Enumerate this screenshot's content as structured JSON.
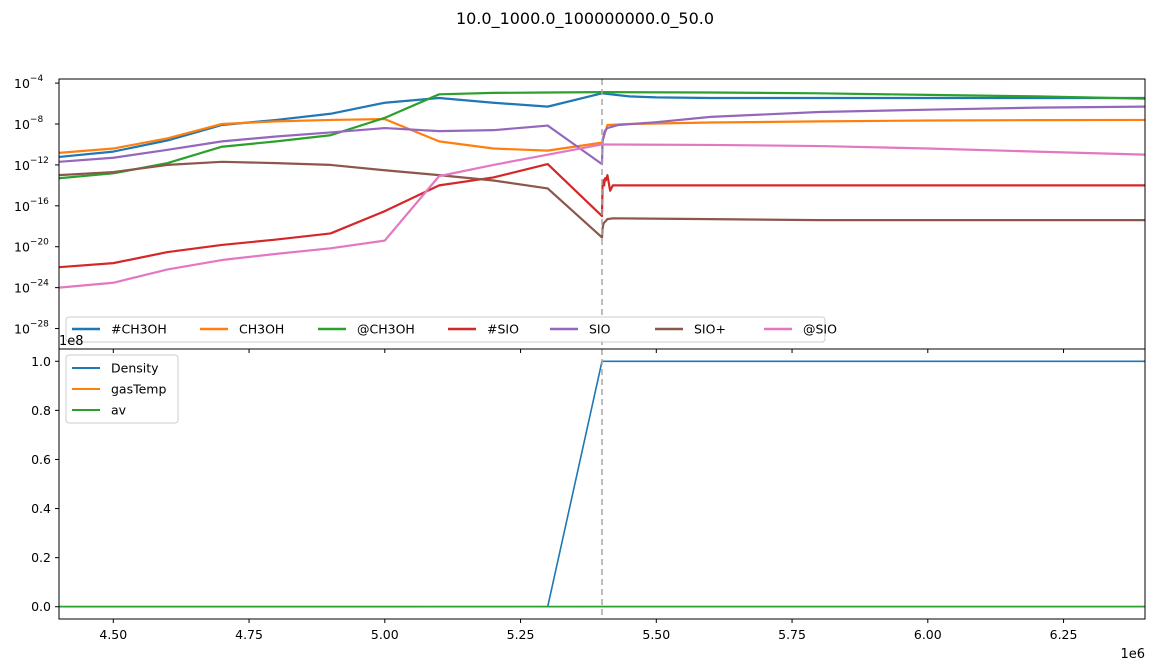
{
  "figure_title": "10.0_1000.0_100000000.0_50.0",
  "chart_data": [
    {
      "type": "line",
      "yscale": "log",
      "xlim": [
        4400000,
        6400000
      ],
      "ylim_log10": [
        -30,
        -3.6
      ],
      "yticks": [
        {
          "value": 0.0001,
          "exp": "-4"
        },
        {
          "value": 1e-08,
          "exp": "-8"
        },
        {
          "value": 1e-12,
          "exp": "-12"
        },
        {
          "value": 1e-16,
          "exp": "-16"
        },
        {
          "value": 1e-20,
          "exp": "-20"
        },
        {
          "value": 1e-24,
          "exp": "-24"
        },
        {
          "value": 1e-28,
          "exp": "-28"
        }
      ],
      "vline_x": 5400000,
      "legend_location": "lower-left",
      "series": [
        {
          "name": "#CH3OH",
          "color": "#1f77b4",
          "x": [
            4400000,
            4500000,
            4600000,
            4700000,
            4800000,
            4900000,
            5000000,
            5100000,
            5200000,
            5300000,
            5400000,
            5450000,
            5500000,
            5600000,
            5800000,
            6000000,
            6200000,
            6400000
          ],
          "y": [
            6e-12,
            2e-11,
            2.5e-10,
            8e-09,
            2.5e-08,
            1e-07,
            1.2e-06,
            3.5e-06,
            1.2e-06,
            5e-07,
            1e-05,
            5e-06,
            4e-06,
            3.5e-06,
            3.5e-06,
            3.5e-06,
            3.5e-06,
            3.5e-06
          ]
        },
        {
          "name": "CH3OH",
          "color": "#ff7f0e",
          "x": [
            4400000,
            4500000,
            4600000,
            4700000,
            4800000,
            4900000,
            5000000,
            5100000,
            5200000,
            5300000,
            5400000,
            5410000,
            5450000,
            5600000,
            5800000,
            6000000,
            6200000,
            6400000
          ],
          "y": [
            1.5e-11,
            4e-11,
            4e-10,
            1e-08,
            1.8e-08,
            2.5e-08,
            3e-08,
            2e-10,
            4e-11,
            2.5e-11,
            1.5e-10,
            8e-09,
            1e-08,
            1.4e-08,
            1.8e-08,
            2.2e-08,
            2.4e-08,
            2.5e-08
          ]
        },
        {
          "name": "@CH3OH",
          "color": "#2ca02c",
          "x": [
            4400000,
            4500000,
            4600000,
            4700000,
            4800000,
            4900000,
            5000000,
            5100000,
            5200000,
            5300000,
            5400000,
            5600000,
            5800000,
            6000000,
            6200000,
            6400000
          ],
          "y": [
            5e-14,
            1.5e-13,
            1.5e-12,
            6e-11,
            2e-10,
            8e-10,
            4e-08,
            8e-06,
            1.1e-05,
            1.2e-05,
            1.3e-05,
            1.2e-05,
            1e-05,
            7e-06,
            5e-06,
            3e-06
          ]
        },
        {
          "name": "#SIO",
          "color": "#d62728",
          "x": [
            4400000,
            4500000,
            4600000,
            4700000,
            4800000,
            4900000,
            5000000,
            5100000,
            5200000,
            5300000,
            5400000,
            5401000,
            5403000,
            5404000,
            5405000,
            5406000,
            5407000,
            5410000,
            5415000,
            5420000,
            5600000,
            5800000,
            6000000,
            6200000,
            6400000
          ],
          "y": [
            1e-22,
            2.5e-22,
            3e-21,
            1.5e-20,
            5e-20,
            2e-19,
            3e-17,
            1e-14,
            6e-14,
            1.2e-12,
            1e-17,
            1e-14,
            3e-14,
            1e-14,
            4e-14,
            5e-14,
            3e-14,
            1e-13,
            3e-15,
            1e-14,
            1e-14,
            1e-14,
            1e-14,
            1e-14,
            1e-14
          ]
        },
        {
          "name": "SIO",
          "color": "#9467bd",
          "x": [
            4400000,
            4500000,
            4600000,
            4700000,
            4800000,
            4900000,
            5000000,
            5100000,
            5200000,
            5300000,
            5400000,
            5401000,
            5405000,
            5410000,
            5430000,
            5500000,
            5600000,
            5800000,
            6000000,
            6200000,
            6400000
          ],
          "y": [
            2e-12,
            5e-12,
            3e-11,
            2e-10,
            6e-10,
            1.5e-09,
            4e-09,
            2e-09,
            2.5e-09,
            7e-09,
            1.2e-12,
            2e-10,
            2e-09,
            4e-09,
            8e-09,
            1.5e-08,
            5e-08,
            1.5e-07,
            2.5e-07,
            4e-07,
            5e-07
          ]
        },
        {
          "name": "SIO+",
          "color": "#8c564b",
          "x": [
            4400000,
            4500000,
            4600000,
            4700000,
            4800000,
            4900000,
            5000000,
            5100000,
            5200000,
            5300000,
            5400000,
            5401000,
            5403000,
            5410000,
            5420000,
            5600000,
            5800000,
            6000000,
            6200000,
            6400000
          ],
          "y": [
            1e-13,
            2e-13,
            1e-12,
            2e-12,
            1.5e-12,
            1e-12,
            3e-13,
            1e-13,
            3e-14,
            5e-15,
            8e-20,
            6e-19,
            2e-18,
            5e-18,
            6e-18,
            5e-18,
            4e-18,
            4e-18,
            4e-18,
            4e-18
          ]
        },
        {
          "name": "@SIO",
          "color": "#e377c2",
          "x": [
            4400000,
            4500000,
            4600000,
            4700000,
            4800000,
            4900000,
            5000000,
            5100000,
            5200000,
            5300000,
            5400000,
            5600000,
            5800000,
            6000000,
            6200000,
            6400000
          ],
          "y": [
            1e-24,
            3e-24,
            6e-23,
            5e-22,
            2e-21,
            7e-21,
            4e-20,
            8e-14,
            1e-12,
            1e-11,
            1e-10,
            9e-11,
            7e-11,
            4e-11,
            2e-11,
            1e-11
          ]
        }
      ]
    },
    {
      "type": "line",
      "xlim": [
        4400000,
        6400000
      ],
      "ylim": [
        -0.05,
        1.05
      ],
      "y_multiplier": "1e8",
      "x_multiplier": "1e6",
      "xticks": [
        {
          "value": 4500000,
          "label": "4.50"
        },
        {
          "value": 4750000,
          "label": "4.75"
        },
        {
          "value": 5000000,
          "label": "5.00"
        },
        {
          "value": 5250000,
          "label": "5.25"
        },
        {
          "value": 5500000,
          "label": "5.50"
        },
        {
          "value": 5750000,
          "label": "5.75"
        },
        {
          "value": 6000000,
          "label": "6.00"
        },
        {
          "value": 6250000,
          "label": "6.25"
        }
      ],
      "yticks": [
        {
          "value": 0.0,
          "label": "0.0"
        },
        {
          "value": 0.2,
          "label": "0.2"
        },
        {
          "value": 0.4,
          "label": "0.4"
        },
        {
          "value": 0.6,
          "label": "0.6"
        },
        {
          "value": 0.8,
          "label": "0.8"
        },
        {
          "value": 1.0,
          "label": "1.0"
        }
      ],
      "vline_x": 5400000,
      "legend_location": "upper-left",
      "series": [
        {
          "name": "Density",
          "color": "#1f77b4",
          "x": [
            4400000,
            5300000,
            5400000,
            6400000
          ],
          "y": [
            0.0,
            0.0,
            1.0,
            1.0
          ]
        },
        {
          "name": "gasTemp",
          "color": "#ff7f0e",
          "x": [
            4400000,
            6400000
          ],
          "y": [
            0.0,
            0.0
          ]
        },
        {
          "name": "av",
          "color": "#2ca02c",
          "x": [
            4400000,
            5400000,
            6400000
          ],
          "y": [
            0.0,
            0.0005,
            0.0005
          ]
        }
      ]
    }
  ]
}
